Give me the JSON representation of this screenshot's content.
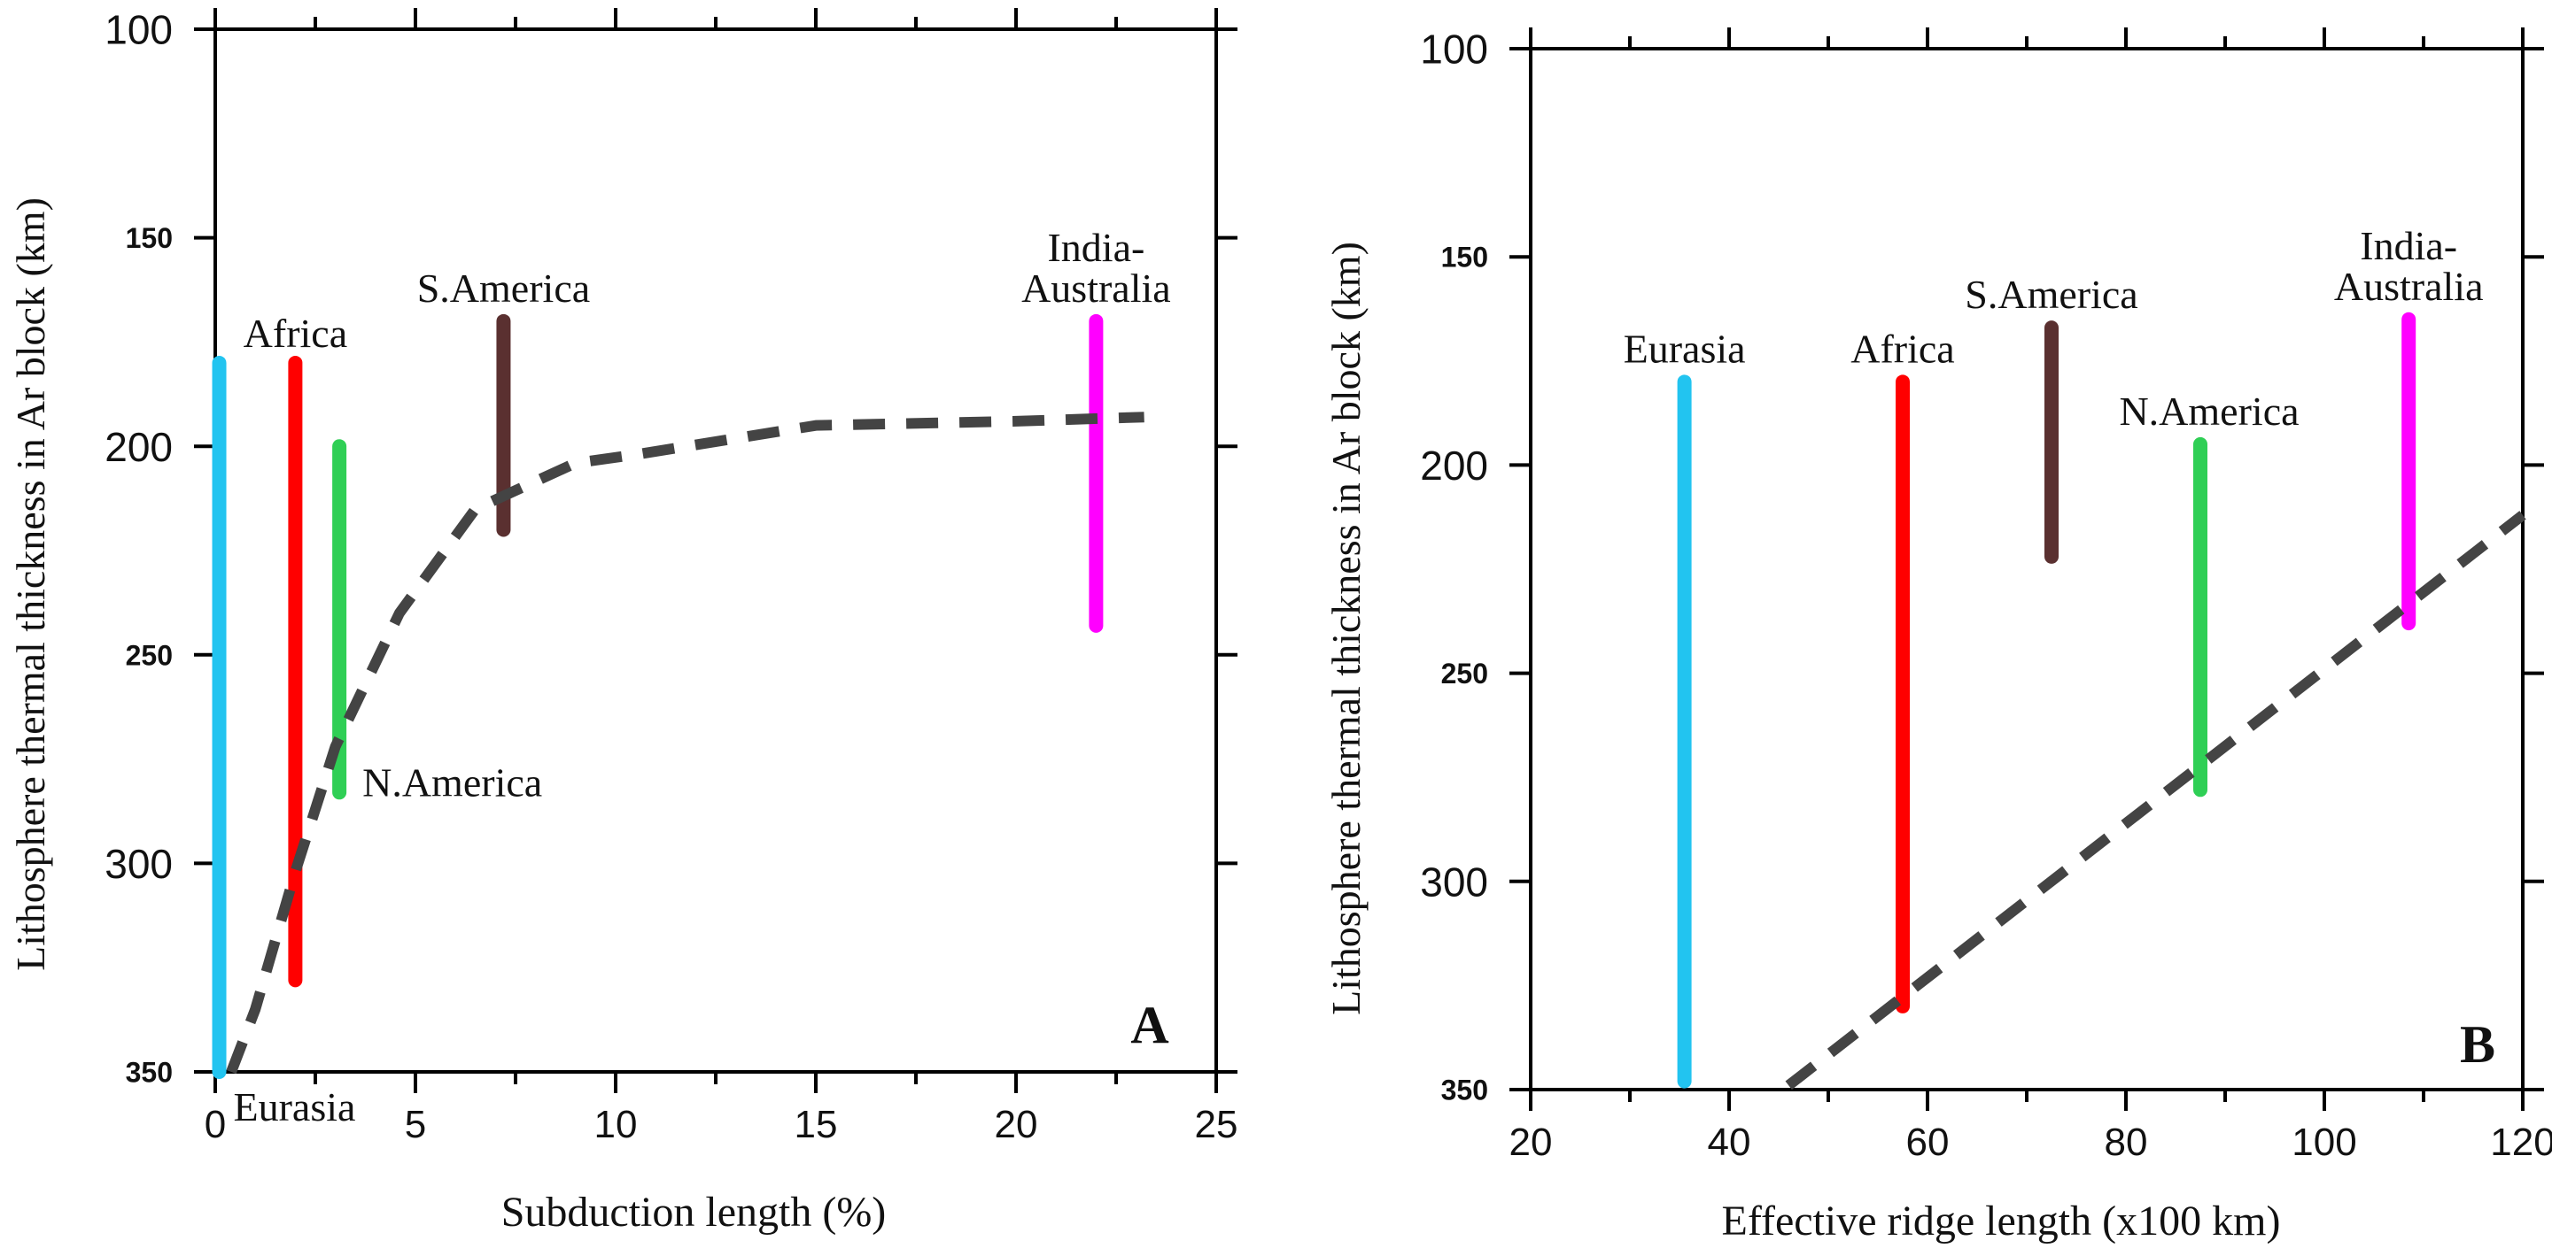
{
  "chart_data": [
    {
      "type": "range",
      "panel_label": "A",
      "xlabel": "Subduction length (%)",
      "ylabel": "Lithosphere thermal thickness in Ar block (km)",
      "xlim": [
        0,
        25
      ],
      "ylim": [
        100,
        350
      ],
      "y_inverted": true,
      "xticks": [
        {
          "value": 0,
          "label": "0"
        },
        {
          "value": 5,
          "label": "5"
        },
        {
          "value": 10,
          "label": "10"
        },
        {
          "value": 15,
          "label": "15"
        },
        {
          "value": 20,
          "label": "20"
        },
        {
          "value": 25,
          "label": "25"
        }
      ],
      "yticks": [
        {
          "value": 100,
          "label": "100"
        },
        {
          "value": 150,
          "label": "150"
        },
        {
          "value": 200,
          "label": "200"
        },
        {
          "value": 250,
          "label": "250"
        },
        {
          "value": 300,
          "label": "300"
        },
        {
          "value": 350,
          "label": "350"
        }
      ],
      "series": [
        {
          "name": "Eurasia",
          "x": 0.1,
          "y_top": 180,
          "y_bottom": 350,
          "color": "#22c4f0",
          "label_lines": [
            "Eurasia"
          ],
          "label_pos": "below-right"
        },
        {
          "name": "Africa",
          "x": 2.0,
          "y_top": 180,
          "y_bottom": 328,
          "color": "#ff0000",
          "label_lines": [
            "Africa"
          ],
          "label_pos": "above"
        },
        {
          "name": "N.America",
          "x": 3.1,
          "y_top": 200,
          "y_bottom": 283,
          "color": "#2fcf55",
          "label_lines": [
            "N.America"
          ],
          "label_pos": "below-right"
        },
        {
          "name": "S.America",
          "x": 7.2,
          "y_top": 170,
          "y_bottom": 220,
          "color": "#5a3030",
          "label_lines": [
            "S.America"
          ],
          "label_pos": "above"
        },
        {
          "name": "India-Australia",
          "x": 22.0,
          "y_top": 170,
          "y_bottom": 243,
          "color": "#ff00ff",
          "label_lines": [
            "India-",
            "Australia"
          ],
          "label_pos": "above"
        }
      ],
      "trend": {
        "style": "dashed",
        "color": "#444444",
        "x": [
          0.4,
          1.0,
          2.0,
          3.0,
          4.6,
          6.5,
          9.0,
          10.5,
          15.0,
          20.0,
          23.2
        ],
        "y": [
          350,
          335,
          302,
          272,
          240,
          215,
          204,
          202,
          195,
          194,
          193
        ]
      }
    },
    {
      "type": "range",
      "panel_label": "B",
      "xlabel": "Effective ridge length (x100 km)",
      "ylabel": "Lithosphere thermal thickness in Ar block (km)",
      "xlim": [
        20,
        120
      ],
      "ylim": [
        100,
        350
      ],
      "y_inverted": true,
      "xticks": [
        {
          "value": 20,
          "label": "20"
        },
        {
          "value": 40,
          "label": "40"
        },
        {
          "value": 60,
          "label": "60"
        },
        {
          "value": 80,
          "label": "80"
        },
        {
          "value": 100,
          "label": "100"
        },
        {
          "value": 120,
          "label": "120"
        }
      ],
      "yticks": [
        {
          "value": 100,
          "label": "100"
        },
        {
          "value": 150,
          "label": "150"
        },
        {
          "value": 200,
          "label": "200"
        },
        {
          "value": 250,
          "label": "250"
        },
        {
          "value": 300,
          "label": "300"
        },
        {
          "value": 350,
          "label": "350"
        }
      ],
      "series": [
        {
          "name": "Eurasia",
          "x": 35.5,
          "y_top": 180,
          "y_bottom": 348,
          "color": "#22c4f0",
          "label_lines": [
            "Eurasia"
          ],
          "label_pos": "above"
        },
        {
          "name": "Africa",
          "x": 57.5,
          "y_top": 180,
          "y_bottom": 330,
          "color": "#ff0000",
          "label_lines": [
            "Africa"
          ],
          "label_pos": "above"
        },
        {
          "name": "S.America",
          "x": 72.5,
          "y_top": 167,
          "y_bottom": 222,
          "color": "#5a3030",
          "label_lines": [
            "S.America"
          ],
          "label_pos": "above"
        },
        {
          "name": "N.America",
          "x": 87.5,
          "y_top": 195,
          "y_bottom": 278,
          "color": "#2fcf55",
          "label_lines": [
            "N.America"
          ],
          "label_pos": "above"
        },
        {
          "name": "India-Australia",
          "x": 108.5,
          "y_top": 165,
          "y_bottom": 238,
          "color": "#ff00ff",
          "label_lines": [
            "India-",
            "Australia"
          ],
          "label_pos": "above"
        }
      ],
      "trend": {
        "style": "dashed",
        "color": "#444444",
        "x": [
          46,
          120
        ],
        "y": [
          349,
          212
        ]
      }
    }
  ]
}
